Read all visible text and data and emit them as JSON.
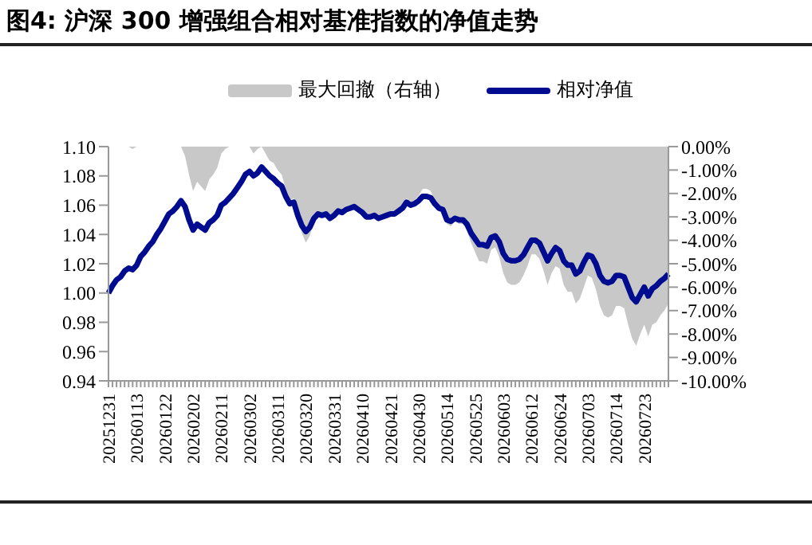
{
  "chart_data": {
    "type": "line",
    "title": "图4:  沪深 300 增强组合相对基准指数的净值走势",
    "categories": [
      "20251231",
      null,
      null,
      null,
      null,
      null,
      null,
      "20260113",
      null,
      null,
      null,
      null,
      null,
      null,
      "20260122",
      null,
      null,
      null,
      null,
      null,
      null,
      "20260202",
      null,
      null,
      null,
      null,
      null,
      null,
      "20260211",
      null,
      null,
      null,
      null,
      null,
      null,
      "20260302",
      null,
      null,
      null,
      null,
      null,
      null,
      "20260311",
      null,
      null,
      null,
      null,
      null,
      null,
      "20260320",
      null,
      null,
      null,
      null,
      null,
      null,
      "20260331",
      null,
      null,
      null,
      null,
      null,
      null,
      "20260410",
      null,
      null,
      null,
      null,
      null,
      null,
      "20260421",
      null,
      null,
      null,
      null,
      null,
      null,
      "20260430",
      null,
      null,
      null,
      null,
      null,
      null,
      "20260514",
      null,
      null,
      null,
      null,
      null,
      null,
      "20260525",
      null,
      null,
      null,
      null,
      null,
      null,
      "20260603",
      null,
      null,
      null,
      null,
      null,
      null,
      "20260612",
      null,
      null,
      null,
      null,
      null,
      null,
      "20260624",
      null,
      null,
      null,
      null,
      null,
      null,
      "20260703",
      null,
      null,
      null,
      null,
      null,
      null,
      "20260714",
      null,
      null,
      null,
      null,
      null,
      null,
      "20260723",
      null,
      null,
      null,
      null,
      null,
      null
    ],
    "series": [
      {
        "name": "最大回撤（右轴）",
        "type": "area",
        "axis": "y2",
        "color": "#c8c8c8",
        "values": [
          0,
          0,
          0,
          0,
          0,
          0,
          -0.1,
          0,
          0,
          0,
          0,
          0,
          0,
          0,
          0,
          0,
          0,
          0,
          0,
          -0.4,
          -1.2,
          -1.9,
          -1.5,
          -1.7,
          -1.9,
          -1.4,
          -1.2,
          -0.9,
          -0.3,
          -0.1,
          0,
          0,
          0,
          0,
          0,
          0,
          -0.3,
          -0.1,
          0,
          -0.3,
          -0.6,
          -0.7,
          -1.0,
          -1.2,
          -1.8,
          -2.3,
          -2.2,
          -3.0,
          -3.7,
          -4.1,
          -3.8,
          -3.2,
          -2.9,
          -3.0,
          -2.9,
          -3.2,
          -3.0,
          -2.8,
          -2.9,
          -2.7,
          -2.6,
          -2.5,
          -2.7,
          -2.9,
          -3.1,
          -3.1,
          -3.0,
          -3.2,
          -3.1,
          -3.0,
          -2.9,
          -2.9,
          -2.8,
          -2.6,
          -2.2,
          -2.4,
          -2.3,
          -2.1,
          -1.8,
          -1.8,
          -1.9,
          -2.3,
          -2.6,
          -2.7,
          -3.3,
          -3.4,
          -3.2,
          -3.3,
          -3.3,
          -3.6,
          -4.1,
          -4.5,
          -4.9,
          -4.9,
          -5.0,
          -4.4,
          -4.3,
          -4.7,
          -5.4,
          -5.8,
          -5.9,
          -5.9,
          -5.8,
          -5.5,
          -5.1,
          -4.6,
          -4.6,
          -4.8,
          -5.3,
          -5.9,
          -5.4,
          -5.1,
          -5.2,
          -5.9,
          -6.2,
          -6.2,
          -6.7,
          -6.5,
          -6.0,
          -5.5,
          -5.6,
          -6.1,
          -6.8,
          -7.2,
          -7.3,
          -7.2,
          -6.8,
          -6.8,
          -6.9,
          -7.6,
          -8.2,
          -8.5,
          -8.0,
          -7.6,
          -8.1,
          -7.6,
          -7.5,
          -7.2,
          -7.0,
          -6.7
        ]
      },
      {
        "name": "相对净值",
        "color": "#000c8f",
        "values": [
          1.0,
          1.005,
          1.009,
          1.011,
          1.015,
          1.017,
          1.016,
          1.019,
          1.025,
          1.028,
          1.032,
          1.035,
          1.04,
          1.044,
          1.049,
          1.054,
          1.056,
          1.059,
          1.063,
          1.059,
          1.05,
          1.043,
          1.047,
          1.045,
          1.043,
          1.048,
          1.05,
          1.053,
          1.06,
          1.062,
          1.065,
          1.068,
          1.072,
          1.076,
          1.081,
          1.083,
          1.08,
          1.082,
          1.086,
          1.083,
          1.08,
          1.078,
          1.075,
          1.073,
          1.066,
          1.061,
          1.062,
          1.053,
          1.046,
          1.042,
          1.045,
          1.051,
          1.054,
          1.053,
          1.054,
          1.051,
          1.053,
          1.056,
          1.055,
          1.057,
          1.058,
          1.059,
          1.057,
          1.055,
          1.052,
          1.052,
          1.053,
          1.051,
          1.052,
          1.053,
          1.054,
          1.054,
          1.056,
          1.058,
          1.062,
          1.06,
          1.061,
          1.063,
          1.066,
          1.066,
          1.065,
          1.061,
          1.058,
          1.057,
          1.05,
          1.049,
          1.051,
          1.05,
          1.05,
          1.047,
          1.041,
          1.037,
          1.033,
          1.033,
          1.032,
          1.038,
          1.039,
          1.035,
          1.027,
          1.023,
          1.022,
          1.022,
          1.023,
          1.026,
          1.031,
          1.036,
          1.036,
          1.034,
          1.028,
          1.022,
          1.027,
          1.031,
          1.029,
          1.022,
          1.019,
          1.019,
          1.013,
          1.015,
          1.021,
          1.026,
          1.025,
          1.02,
          1.012,
          1.008,
          1.007,
          1.008,
          1.012,
          1.012,
          1.011,
          1.004,
          0.997,
          0.994,
          0.999,
          1.004,
          0.998,
          1.003,
          1.005,
          1.008,
          1.01,
          1.013
        ]
      }
    ],
    "ylim": [
      0.94,
      1.1
    ],
    "yticks": [
      {
        "value": 0.94,
        "label": "0.94"
      },
      {
        "value": 0.96,
        "label": "0.96"
      },
      {
        "value": 0.98,
        "label": "0.98"
      },
      {
        "value": 1.0,
        "label": "1.00"
      },
      {
        "value": 1.02,
        "label": "1.02"
      },
      {
        "value": 1.04,
        "label": "1.04"
      },
      {
        "value": 1.06,
        "label": "1.06"
      },
      {
        "value": 1.08,
        "label": "1.08"
      },
      {
        "value": 1.1,
        "label": "1.10"
      }
    ],
    "y2lim": [
      -10,
      0
    ],
    "y2ticks": [
      {
        "value": 0,
        "label": "0.00%"
      },
      {
        "value": -1,
        "label": "-1.00%"
      },
      {
        "value": -2,
        "label": "-2.00%"
      },
      {
        "value": -3,
        "label": "-3.00%"
      },
      {
        "value": -4,
        "label": "-4.00%"
      },
      {
        "value": -5,
        "label": "-5.00%"
      },
      {
        "value": -6,
        "label": "-6.00%"
      },
      {
        "value": -7,
        "label": "-7.00%"
      },
      {
        "value": -8,
        "label": "-8.00%"
      },
      {
        "value": -9,
        "label": "-9.00%"
      },
      {
        "value": -10,
        "label": "-10.00%"
      }
    ],
    "legend": "top",
    "grid": false,
    "marker": "none"
  }
}
